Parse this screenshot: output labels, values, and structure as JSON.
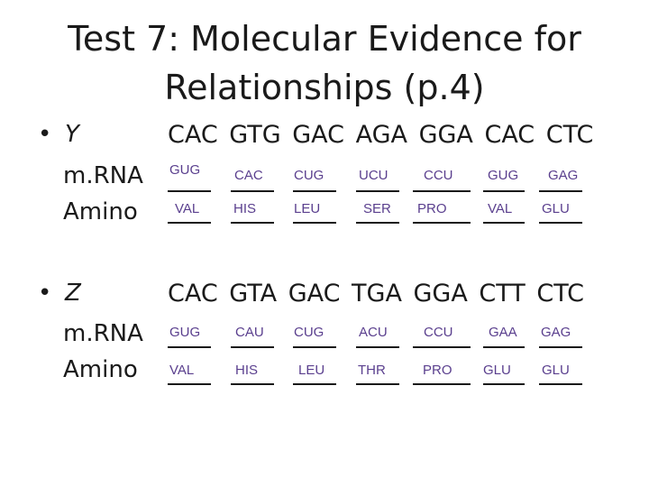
{
  "title": {
    "line1": "Test 7: Molecular Evidence for",
    "line2": "Relationships (p.4)"
  },
  "bullet_glyph": "•",
  "sections": [
    {
      "label": "Y",
      "dna": "CAC GTG GAC AGA GGA CAC CTC",
      "row_labels": [
        "m.RNA",
        "Amino"
      ],
      "mrna": [
        "GUG",
        "CAC",
        "CUG",
        "UCU",
        "CCU",
        "GUG",
        "GAG"
      ],
      "amino": [
        "VAL",
        "HIS",
        "LEU",
        "SER",
        "PRO",
        "VAL",
        "GLU"
      ]
    },
    {
      "label": "Z",
      "dna": "CAC GTA GAC TGA GGA CTT CTC",
      "row_labels": [
        "m.RNA",
        "Amino"
      ],
      "mrna": [
        "GUG",
        "CAU",
        "CUG",
        "ACU",
        "CCU",
        "GAA",
        "GAG"
      ],
      "amino": [
        "VAL",
        "HIS",
        "LEU",
        "THR",
        "PRO",
        "GLU",
        "GLU"
      ]
    }
  ]
}
